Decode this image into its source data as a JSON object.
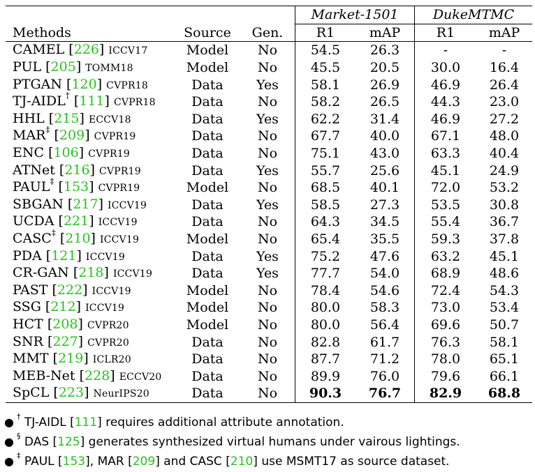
{
  "header": {
    "methods": "Methods",
    "source": "Source",
    "gen": "Gen.",
    "groups": [
      {
        "name": "Market-1501",
        "cols": [
          "R1",
          "mAP"
        ]
      },
      {
        "name": "DukeMTMC",
        "cols": [
          "R1",
          "mAP"
        ]
      }
    ]
  },
  "rows": [
    {
      "name": "CAMEL",
      "mark": "",
      "ref": "226",
      "venue": "ICCV17",
      "source": "Model",
      "gen": "No",
      "m_r1": "54.5",
      "m_map": "26.3",
      "d_r1": "-",
      "d_map": "-"
    },
    {
      "name": "PUL",
      "mark": "",
      "ref": "205",
      "venue": "TOMM18",
      "source": "Model",
      "gen": "No",
      "m_r1": "45.5",
      "m_map": "20.5",
      "d_r1": "30.0",
      "d_map": "16.4"
    },
    {
      "name": "PTGAN",
      "mark": "",
      "ref": "120",
      "venue": "CVPR18",
      "source": "Data",
      "gen": "Yes",
      "m_r1": "58.1",
      "m_map": "26.9",
      "d_r1": "46.9",
      "d_map": "26.4"
    },
    {
      "name": "TJ-AIDL",
      "mark": "†",
      "ref": "111",
      "venue": "CVPR18",
      "source": "Data",
      "gen": "No",
      "m_r1": "58.2",
      "m_map": "26.5",
      "d_r1": "44.3",
      "d_map": "23.0"
    },
    {
      "name": "HHL",
      "mark": "",
      "ref": "215",
      "venue": "ECCV18",
      "source": "Data",
      "gen": "Yes",
      "m_r1": "62.2",
      "m_map": "31.4",
      "d_r1": "46.9",
      "d_map": "27.2"
    },
    {
      "name": "MAR",
      "mark": "‡",
      "ref": "209",
      "venue": "CVPR19",
      "source": "Data",
      "gen": "No",
      "m_r1": "67.7",
      "m_map": "40.0",
      "d_r1": "67.1",
      "d_map": "48.0"
    },
    {
      "name": "ENC",
      "mark": "",
      "ref": "106",
      "venue": "CVPR19",
      "source": "Data",
      "gen": "No",
      "m_r1": "75.1",
      "m_map": "43.0",
      "d_r1": "63.3",
      "d_map": "40.4"
    },
    {
      "name": "ATNet",
      "mark": "",
      "ref": "216",
      "venue": "CVPR19",
      "source": "Data",
      "gen": "Yes",
      "m_r1": "55.7",
      "m_map": "25.6",
      "d_r1": "45.1",
      "d_map": "24.9"
    },
    {
      "name": "PAUL",
      "mark": "‡",
      "ref": "153",
      "venue": "CVPR19",
      "source": "Model",
      "gen": "No",
      "m_r1": "68.5",
      "m_map": "40.1",
      "d_r1": "72.0",
      "d_map": "53.2"
    },
    {
      "name": "SBGAN",
      "mark": "",
      "ref": "217",
      "venue": "ICCV19",
      "source": "Data",
      "gen": "Yes",
      "m_r1": "58.5",
      "m_map": "27.3",
      "d_r1": "53.5",
      "d_map": "30.8"
    },
    {
      "name": "UCDA",
      "mark": "",
      "ref": "221",
      "venue": "ICCV19",
      "source": "Data",
      "gen": "No",
      "m_r1": "64.3",
      "m_map": "34.5",
      "d_r1": "55.4",
      "d_map": "36.7"
    },
    {
      "name": "CASC",
      "mark": "‡",
      "ref": "210",
      "venue": "ICCV19",
      "source": "Model",
      "gen": "No",
      "m_r1": "65.4",
      "m_map": "35.5",
      "d_r1": "59.3",
      "d_map": "37.8"
    },
    {
      "name": "PDA",
      "mark": "",
      "ref": "121",
      "venue": "ICCV19",
      "source": "Data",
      "gen": "Yes",
      "m_r1": "75.2",
      "m_map": "47.6",
      "d_r1": "63.2",
      "d_map": "45.1"
    },
    {
      "name": "CR-GAN",
      "mark": "",
      "ref": "218",
      "venue": "ICCV19",
      "source": "Data",
      "gen": "Yes",
      "m_r1": "77.7",
      "m_map": "54.0",
      "d_r1": "68.9",
      "d_map": "48.6"
    },
    {
      "name": "PAST",
      "mark": "",
      "ref": "222",
      "venue": "ICCV19",
      "source": "Model",
      "gen": "No",
      "m_r1": "78.4",
      "m_map": "54.6",
      "d_r1": "72.4",
      "d_map": "54.3"
    },
    {
      "name": "SSG",
      "mark": "",
      "ref": "212",
      "venue": "ICCV19",
      "source": "Model",
      "gen": "No",
      "m_r1": "80.0",
      "m_map": "58.3",
      "d_r1": "73.0",
      "d_map": "53.4"
    },
    {
      "name": "HCT",
      "mark": "",
      "ref": "208",
      "venue": "CVPR20",
      "source": "Model",
      "gen": "No",
      "m_r1": "80.0",
      "m_map": "56.4",
      "d_r1": "69.6",
      "d_map": "50.7"
    },
    {
      "name": "SNR",
      "mark": "",
      "ref": "227",
      "venue": "CVPR20",
      "source": "Data",
      "gen": "No",
      "m_r1": "82.8",
      "m_map": "61.7",
      "d_r1": "76.3",
      "d_map": "58.1"
    },
    {
      "name": "MMT",
      "mark": "",
      "ref": "219",
      "venue": "ICLR20",
      "source": "Data",
      "gen": "No",
      "m_r1": "87.7",
      "m_map": "71.2",
      "d_r1": "78.0",
      "d_map": "65.1"
    },
    {
      "name": "MEB-Net",
      "mark": "",
      "ref": "228",
      "venue": "ECCV20",
      "source": "Data",
      "gen": "No",
      "m_r1": "89.9",
      "m_map": "76.0",
      "d_r1": "79.6",
      "d_map": "66.1"
    },
    {
      "name": "SpCL",
      "mark": "",
      "ref": "223",
      "venue": "NeurIPS20",
      "source": "Data",
      "gen": "No",
      "m_r1": "90.3",
      "m_map": "76.7",
      "d_r1": "82.9",
      "d_map": "68.8",
      "bold": true
    }
  ],
  "notes": [
    {
      "mark": "†",
      "parts": [
        {
          "t": "TJ-AIDL "
        },
        {
          "r": "111"
        },
        {
          "t": " requires additional attribute annotation."
        }
      ]
    },
    {
      "mark": "§",
      "parts": [
        {
          "t": "DAS "
        },
        {
          "r": "125"
        },
        {
          "t": " generates synthesized virtual humans under vairous lightings."
        }
      ]
    },
    {
      "mark": "‡",
      "parts": [
        {
          "t": "PAUL "
        },
        {
          "r": "153"
        },
        {
          "t": ", MAR "
        },
        {
          "r": "209"
        },
        {
          "t": " and CASC "
        },
        {
          "r": "210"
        },
        {
          "t": " use MSMT17 as source dataset."
        }
      ]
    }
  ],
  "colors": {
    "ref": "#27c21f"
  }
}
